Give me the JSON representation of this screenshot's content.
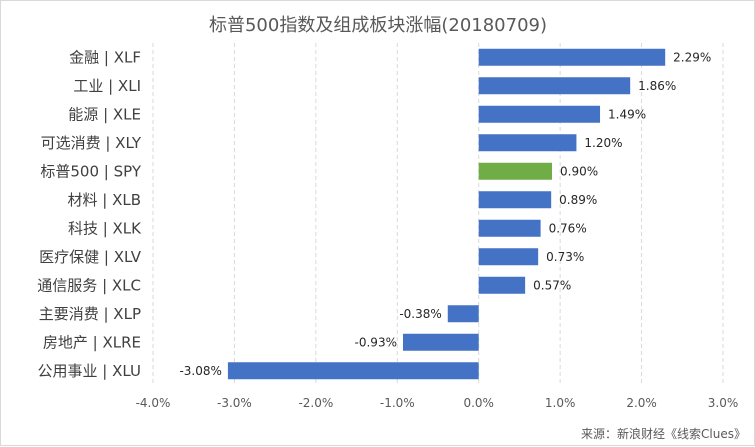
{
  "chart_data": {
    "type": "bar",
    "orientation": "horizontal",
    "title": "标普500指数及组成板块涨幅(20180709)",
    "xlabel": "",
    "ylabel": "",
    "categories": [
      "金融 | XLF",
      "工业 | XLI",
      "能源 | XLE",
      "可选消费 | XLY",
      "标普500 | SPY",
      "材料 | XLB",
      "科技 | XLK",
      "医疗保健 | XLV",
      "通信服务 | XLC",
      "主要消费 | XLP",
      "房地产 | XLRE",
      "公用事业 | XLU"
    ],
    "values": [
      2.29,
      1.86,
      1.49,
      1.2,
      0.9,
      0.89,
      0.76,
      0.73,
      0.57,
      -0.38,
      -0.93,
      -3.08
    ],
    "data_labels": [
      "2.29%",
      "1.86%",
      "1.49%",
      "1.20%",
      "0.90%",
      "0.89%",
      "0.76%",
      "0.73%",
      "0.57%",
      "-0.38%",
      "-0.93%",
      "-3.08%"
    ],
    "xlim": [
      -4.0,
      3.0
    ],
    "xticks": [
      -4.0,
      -3.0,
      -2.0,
      -1.0,
      0.0,
      1.0,
      2.0,
      3.0
    ],
    "xtick_labels": [
      "-4.0%",
      "-3.0%",
      "-2.0%",
      "-1.0%",
      "0.0%",
      "1.0%",
      "2.0%",
      "3.0%"
    ],
    "grid": "vertical dashed",
    "legend": "none",
    "bar_color": "#4472c4",
    "highlight_color": "#70ad47",
    "highlight_index": 4
  },
  "source": "来源：新浪财经《线索Clues》"
}
